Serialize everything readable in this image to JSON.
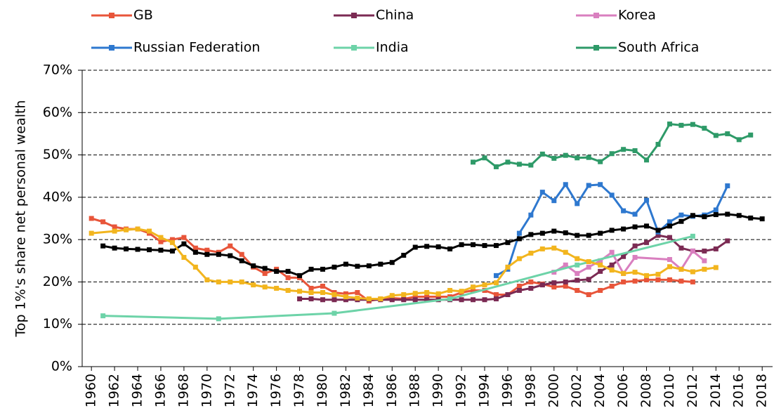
{
  "chart_data": {
    "type": "line",
    "y_label": "Top 1%'s share net personal wealth",
    "xlim": [
      1959.2,
      2018.9
    ],
    "xticks": [
      1960,
      1962,
      1964,
      1966,
      1968,
      1970,
      1972,
      1974,
      1976,
      1978,
      1980,
      1982,
      1984,
      1986,
      1988,
      1990,
      1992,
      1994,
      1996,
      1998,
      2000,
      2002,
      2004,
      2006,
      2008,
      2010,
      2012,
      2014,
      2016,
      2018
    ],
    "ylim": [
      0,
      70
    ],
    "yticks": [
      {
        "value": 0,
        "label": "0%"
      },
      {
        "value": 10,
        "label": "10%"
      },
      {
        "value": 20,
        "label": "20%"
      },
      {
        "value": 30,
        "label": "30%"
      },
      {
        "value": 40,
        "label": "40%"
      },
      {
        "value": 50,
        "label": "50%"
      },
      {
        "value": 60,
        "label": "60%"
      },
      {
        "value": 70,
        "label": "70%"
      }
    ],
    "grid": true,
    "legend": "top",
    "series": [
      {
        "name": "GB",
        "color": "#e8553a",
        "x": [
          1960,
          1961,
          1962,
          1963,
          1964,
          1965,
          1966,
          1967,
          1968,
          1969,
          1970,
          1971,
          1972,
          1973,
          1974,
          1975,
          1976,
          1977,
          1978,
          1979,
          1980,
          1981,
          1982,
          1983,
          1984,
          1985,
          1986,
          1987,
          1988,
          1989,
          1990,
          1991,
          1992,
          1993,
          1994,
          1995,
          1996,
          1997,
          1998,
          1999,
          2000,
          2001,
          2002,
          2003,
          2004,
          2005,
          2006,
          2007,
          2008,
          2009,
          2010,
          2011,
          2012
        ],
        "values": [
          35,
          34.2,
          33,
          32.5,
          32.5,
          31.5,
          29.5,
          30,
          30.5,
          28,
          27.5,
          27,
          28.5,
          26.5,
          23.5,
          22,
          23,
          21,
          21,
          18.5,
          19,
          17.5,
          17.2,
          17.5,
          15.5,
          16,
          16.2,
          16,
          16.5,
          16.5,
          16.5,
          16.5,
          17.5,
          18,
          18,
          17,
          17,
          19,
          20,
          19.5,
          18.8,
          19,
          18,
          17,
          18,
          19,
          20,
          20.2,
          20.5,
          20.5,
          20.5,
          20.2,
          20
        ]
      },
      {
        "name": "China",
        "color": "#7b2a53",
        "x": [
          1978,
          1979,
          1980,
          1981,
          1982,
          1983,
          1984,
          1985,
          1986,
          1987,
          1988,
          1989,
          1990,
          1991,
          1992,
          1993,
          1994,
          1995,
          1996,
          1997,
          1998,
          1999,
          2000,
          2001,
          2002,
          2003,
          2004,
          2005,
          2006,
          2007,
          2008,
          2009,
          2010,
          2011,
          2012,
          2013,
          2014,
          2015
        ],
        "values": [
          16,
          16,
          15.8,
          15.8,
          15.8,
          15.8,
          15.8,
          15.8,
          15.8,
          15.8,
          15.8,
          15.8,
          15.8,
          15.8,
          15.8,
          15.8,
          15.8,
          16,
          17,
          18,
          18.5,
          19.3,
          19.8,
          20,
          20.4,
          20.6,
          22.5,
          24,
          26,
          28.5,
          29.3,
          31,
          30.5,
          28,
          27.3,
          27.3,
          27.8,
          29.7
        ]
      },
      {
        "name": "Korea",
        "color": "#d97fbf",
        "x": [
          2000,
          2001,
          2002,
          2003,
          2004,
          2005,
          2006,
          2007,
          2010,
          2011,
          2012,
          2013
        ],
        "values": [
          22.3,
          24,
          22,
          23.5,
          25,
          27,
          22,
          25.8,
          25.3,
          23,
          27.3,
          25
        ]
      },
      {
        "name": "Russian Federation",
        "color": "#2e78cf",
        "x": [
          1995,
          1996,
          1997,
          1998,
          1999,
          2000,
          2001,
          2002,
          2003,
          2004,
          2005,
          2006,
          2007,
          2008,
          2009,
          2010,
          2011,
          2012,
          2013,
          2014,
          2015
        ],
        "values": [
          21.5,
          23,
          31.5,
          35.8,
          41.2,
          39.2,
          43,
          38.5,
          42.8,
          43,
          40.5,
          36.8,
          36,
          39.3,
          31.8,
          34.2,
          35.8,
          35.5,
          35.8,
          37,
          42.7
        ]
      },
      {
        "name": "India",
        "color": "#6dd3a8",
        "x": [
          1961,
          1971,
          1981,
          1991,
          2002,
          2012
        ],
        "values": [
          12,
          11.3,
          12.6,
          16,
          24,
          30.8
        ]
      },
      {
        "name": "South Africa",
        "color": "#2e9a68",
        "x": [
          1993,
          1994,
          1995,
          1996,
          1997,
          1998,
          1999,
          2000,
          2001,
          2002,
          2003,
          2004,
          2005,
          2006,
          2007,
          2008,
          2009,
          2010,
          2011,
          2012,
          2013,
          2014,
          2015,
          2016,
          2017
        ],
        "values": [
          48.3,
          49.3,
          47.2,
          48.3,
          47.8,
          47.6,
          50.2,
          49.2,
          49.9,
          49.3,
          49.4,
          48.4,
          50.3,
          51.3,
          51,
          48.8,
          52.5,
          57.3,
          57,
          57.2,
          56.3,
          54.6,
          55,
          53.6,
          54.7
        ]
      },
      {
        "color": "#000000",
        "x": [
          1961,
          1962,
          1963,
          1964,
          1965,
          1966,
          1967,
          1968,
          1969,
          1970,
          1971,
          1972,
          1973,
          1974,
          1975,
          1976,
          1977,
          1978,
          1979,
          1980,
          1981,
          1982,
          1983,
          1984,
          1985,
          1986,
          1987,
          1988,
          1989,
          1990,
          1991,
          1992,
          1993,
          1994,
          1995,
          1996,
          1997,
          1998,
          1999,
          2000,
          2001,
          2002,
          2003,
          2004,
          2005,
          2006,
          2007,
          2008,
          2009,
          2010,
          2011,
          2012,
          2013,
          2014,
          2015,
          2016,
          2017,
          2018
        ],
        "values": [
          28.5,
          28,
          27.8,
          27.7,
          27.6,
          27.5,
          27.3,
          29,
          27,
          26.5,
          26.5,
          26.2,
          25,
          23.8,
          23.2,
          22.5,
          22.5,
          21.5,
          23,
          23,
          23.5,
          24.2,
          23.7,
          23.8,
          24.2,
          24.6,
          26.3,
          28.2,
          28.4,
          28.3,
          27.8,
          28.8,
          28.8,
          28.6,
          28.6,
          29.3,
          30.2,
          31.2,
          31.5,
          32,
          31.6,
          31,
          31,
          31.5,
          32.2,
          32.5,
          33,
          33.2,
          32.2,
          33.2,
          34.3,
          35.7,
          35.4,
          35.9,
          36,
          35.7,
          35.1,
          34.9
        ]
      },
      {
        "color": "#f2b51e",
        "x": [
          1960,
          1962,
          1963,
          1964,
          1965,
          1966,
          1967,
          1968,
          1969,
          1970,
          1971,
          1972,
          1973,
          1974,
          1975,
          1976,
          1977,
          1978,
          1979,
          1980,
          1981,
          1982,
          1983,
          1984,
          1985,
          1986,
          1987,
          1988,
          1989,
          1990,
          1991,
          1992,
          1993,
          1994,
          1995,
          1996,
          1997,
          1998,
          1999,
          2000,
          2001,
          2002,
          2003,
          2004,
          2005,
          2006,
          2007,
          2008,
          2009,
          2010,
          2011,
          2012,
          2013,
          2014
        ],
        "values": [
          31.5,
          32,
          32.3,
          32.5,
          32,
          30.5,
          29.3,
          25.8,
          23.5,
          20.5,
          20,
          20,
          20,
          19.3,
          18.8,
          18.5,
          18,
          17.8,
          17.5,
          17.5,
          17,
          16.5,
          16.2,
          16,
          16,
          16.8,
          17,
          17.3,
          17.5,
          17.2,
          18,
          17.8,
          18.8,
          19.3,
          19.8,
          23.5,
          25.5,
          26.8,
          27.8,
          28,
          27,
          25.5,
          24.8,
          24,
          22.8,
          22,
          22.3,
          21.5,
          21.8,
          23.6,
          23,
          22.4,
          23,
          23.4
        ]
      }
    ]
  }
}
